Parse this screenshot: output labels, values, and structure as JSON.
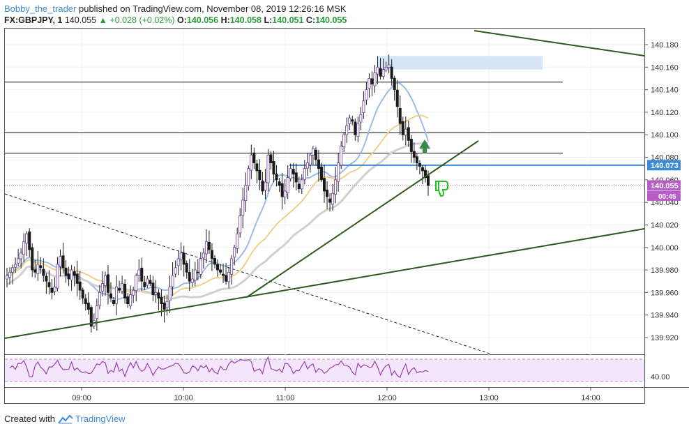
{
  "header": {
    "author": "Bobby_the_trader",
    "published_text": "published on TradingView.com, November 08, 2019 12:26:16 MSK",
    "symbol": "FX:GBPJPY, 1",
    "last": "140.055",
    "change": "+0.028 (+0.02%)",
    "o_label": "O:",
    "o": "140.056",
    "h_label": "H:",
    "h": "140.058",
    "l_label": "L:",
    "l": "140.051",
    "c_label": "C:",
    "c": "140.055"
  },
  "footer": {
    "created_with": "Created with",
    "brand": "TradingView"
  },
  "colors": {
    "up_candle": "#ffffff",
    "down_candle": "#1a1a1a",
    "candle_purple": "#6a3d9a",
    "trendline": "#2d5a1e",
    "blue_level": "#3d8ad6",
    "rsi_band": "#f3e6fb",
    "price_tag": "#b85cc7",
    "ma_blue": "#9bbbe8",
    "ma_yellow": "#f0d08a",
    "ma_gray": "#d0d0d0"
  },
  "chart_data": {
    "type": "candlestick",
    "symbol": "FX:GBPJPY",
    "timeframe": "1",
    "x_ticks": [
      "09:00",
      "10:00",
      "11:00",
      "12:00",
      "13:00",
      "14:00"
    ],
    "y_ticks": [
      "140.180",
      "140.160",
      "140.140",
      "140.120",
      "140.100",
      "140.080",
      "140.060",
      "140.040",
      "140.020",
      "140.000",
      "139.980",
      "139.960",
      "139.940",
      "139.920"
    ],
    "ylim": [
      139.91,
      140.19
    ],
    "price_labels": {
      "blue_level": "140.073",
      "last_price": "140.055",
      "countdown": "00:45"
    },
    "close_series": [
      139.975,
      139.978,
      139.982,
      139.985,
      139.99,
      139.995,
      140.005,
      140.012,
      139.998,
      139.98,
      139.978,
      139.985,
      139.982,
      139.975,
      139.97,
      139.965,
      139.96,
      139.965,
      139.985,
      139.992,
      139.982,
      139.975,
      139.972,
      139.98,
      139.975,
      139.968,
      139.962,
      139.955,
      139.95,
      139.945,
      139.93,
      139.935,
      139.948,
      139.96,
      139.968,
      139.975,
      139.96,
      139.955,
      139.95,
      139.965,
      139.962,
      139.968,
      139.955,
      139.95,
      139.958,
      139.962,
      139.975,
      139.98,
      139.97,
      139.965,
      139.972,
      139.968,
      139.958,
      139.96,
      139.955,
      139.95,
      139.945,
      139.952,
      139.965,
      139.975,
      139.982,
      139.99,
      139.995,
      139.985,
      139.978,
      139.97,
      139.972,
      139.98,
      139.978,
      139.99,
      139.995,
      140.005,
      139.998,
      139.99,
      139.985,
      139.98,
      139.978,
      139.975,
      139.97,
      139.978,
      139.99,
      140.0,
      140.012,
      140.028,
      140.042,
      140.055,
      140.07,
      140.082,
      140.075,
      140.068,
      140.06,
      140.05,
      140.058,
      140.082,
      140.075,
      140.065,
      140.06,
      140.055,
      140.045,
      140.05,
      140.062,
      140.07,
      140.065,
      140.058,
      140.052,
      140.06,
      140.07,
      140.075,
      140.082,
      140.088,
      140.078,
      140.07,
      140.06,
      140.05,
      140.045,
      140.04,
      140.048,
      140.06,
      140.075,
      140.09,
      140.1,
      140.108,
      140.115,
      140.112,
      140.1,
      140.11,
      140.118,
      140.13,
      140.14,
      140.15,
      140.145,
      140.155,
      140.16,
      140.152,
      140.158,
      140.16,
      140.162,
      140.15,
      140.14,
      140.125,
      140.11,
      140.1,
      140.105,
      140.095,
      140.085,
      140.08,
      140.075,
      140.072,
      140.068,
      140.062,
      140.055
    ],
    "levels": [
      140.147,
      140.102,
      140.084
    ],
    "blue_level": 140.073,
    "resistance_zone": [
      140.158,
      140.17
    ],
    "rsi": {
      "level_label": "40.00"
    },
    "annotations": [
      "up-arrow",
      "thumbs-down"
    ]
  }
}
